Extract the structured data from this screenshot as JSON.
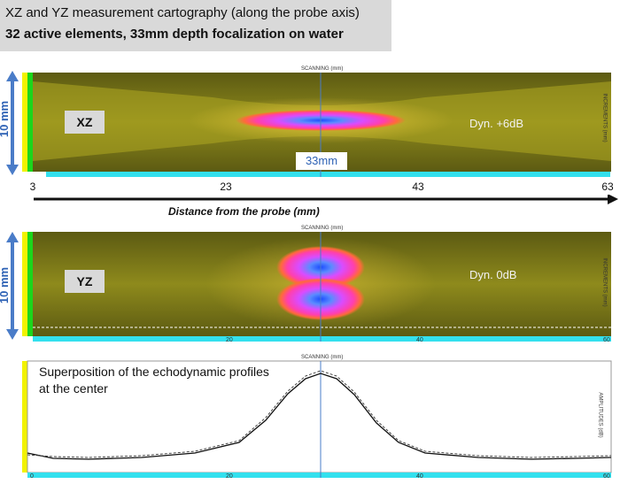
{
  "title": {
    "line1": "XZ and YZ measurement cartography (along the probe axis)",
    "line2": "32 active elements, 33mm depth focalization on water"
  },
  "xz_panel": {
    "axis_label_top": "SCANNING (mm)",
    "axis_label_right": "INCREMENTS (mm)",
    "tag": "XZ",
    "dyn": "Dyn. +6dB",
    "dimension": "10 mm",
    "focus_label": "33mm",
    "distance_ticks": [
      "3",
      "23",
      "43",
      "63"
    ],
    "distance_label": "Distance from the probe (mm)"
  },
  "yz_panel": {
    "axis_label_top": "SCANNING (mm)",
    "axis_label_right": "INCREMENTS (mm)",
    "tag": "YZ",
    "dyn": "Dyn. 0dB",
    "dimension": "10 mm",
    "scale_ticks": [
      "20",
      "40",
      "60"
    ]
  },
  "profile_panel": {
    "axis_label_top": "SCANNING (mm)",
    "axis_label_right": "AMPLITUDES (dB)",
    "label": "Superposition of the echodynamic profiles at the center",
    "scale_ticks": [
      "0",
      "20",
      "40",
      "60"
    ]
  },
  "colors": {
    "field": "#6e6a16",
    "field_bright": "#c9c224",
    "hot": "#ff33cc",
    "core": "#2f6bff",
    "arrow": "#4a7cc8",
    "scale_bar": "#33e0ee",
    "left_bar_green": "#1bd61b",
    "left_bar_yellow": "#f2f200"
  }
}
